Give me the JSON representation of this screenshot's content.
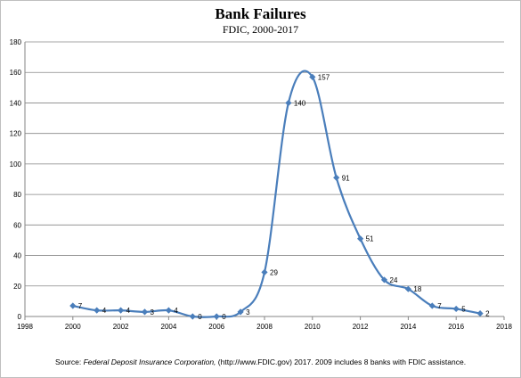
{
  "chart_data": {
    "type": "line",
    "title": "Bank Failures",
    "subtitle": "FDIC, 2000-2017",
    "x": [
      2000,
      2001,
      2002,
      2003,
      2004,
      2005,
      2006,
      2007,
      2008,
      2009,
      2010,
      2011,
      2012,
      2013,
      2014,
      2015,
      2016,
      2017
    ],
    "values": [
      7,
      4,
      4,
      3,
      4,
      0,
      0,
      3,
      29,
      140,
      157,
      91,
      51,
      24,
      18,
      7,
      5,
      2
    ],
    "data_labels": [
      "7",
      "4",
      "4",
      "3",
      "4",
      "0",
      "0",
      "3",
      "29",
      "140",
      "157",
      "91",
      "51",
      "24",
      "18",
      "7",
      "5",
      "2"
    ],
    "xlim": [
      1998,
      2018
    ],
    "ylim": [
      0,
      180
    ],
    "x_ticks": [
      "1998",
      "2000",
      "2002",
      "2004",
      "2006",
      "2008",
      "2010",
      "2012",
      "2014",
      "2016",
      "2018"
    ],
    "y_ticks": [
      "0",
      "20",
      "40",
      "60",
      "80",
      "100",
      "120",
      "140",
      "160",
      "180"
    ],
    "grid": "horizontal",
    "legend": "none",
    "line_color": "#4a7ebb",
    "marker": "diamond"
  },
  "source": {
    "prefix": "Source: ",
    "italic": "Federal Deposit Insurance Corporation,",
    "suffix": " (http://www.FDIC.gov) 2017. 2009  includes 8 banks with FDIC assistance."
  }
}
